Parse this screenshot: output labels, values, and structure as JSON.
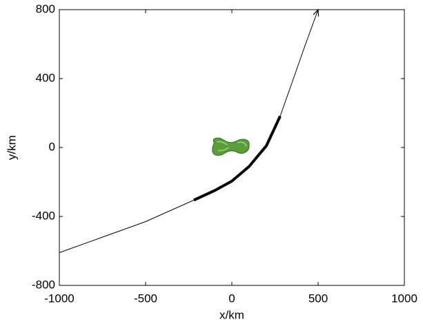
{
  "chart_data": {
    "type": "line",
    "xlabel": "x/km",
    "ylabel": "y/km",
    "xlim": [
      -1000,
      1000
    ],
    "xticks": [
      -1000,
      -500,
      0,
      500,
      1000
    ],
    "ylim": [
      -800,
      800
    ],
    "yticks": [
      -800,
      -400,
      0,
      400,
      800
    ],
    "grid": false,
    "series": [
      {
        "color": "#000000",
        "line_width": 1,
        "x": [
          -1000,
          -750,
          -500,
          -220
        ],
        "values": [
          -610,
          -520,
          -430,
          -305
        ]
      },
      {
        "color": "#000000",
        "line_width": 4,
        "x": [
          -220,
          -100,
          0,
          100,
          200,
          280
        ],
        "values": [
          -305,
          -250,
          -195,
          -110,
          10,
          182
        ]
      },
      {
        "color": "#000000",
        "line_width": 1,
        "arrow": true,
        "x": [
          280,
          350,
          420,
          500
        ],
        "values": [
          182,
          380,
          580,
          800
        ]
      }
    ]
  }
}
